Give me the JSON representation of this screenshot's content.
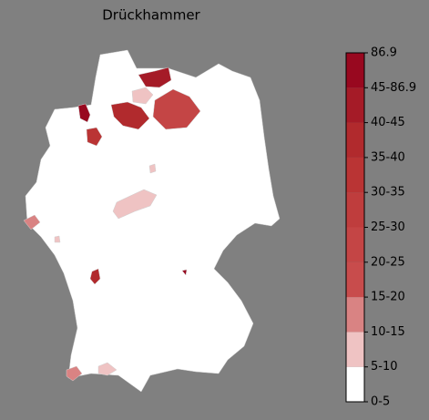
{
  "title": "Drückhammer",
  "colorbar": {
    "labels": [
      "0-5",
      "5-10",
      "10-15",
      "15-20",
      "20-25",
      "25-30",
      "30-35",
      "35-40",
      "40-45",
      "45-86.9",
      "86.9"
    ],
    "colors": [
      "#ffffff",
      "#efc3c3",
      "#d98383",
      "#c84c4c",
      "#c44545",
      "#bf3d3d",
      "#ba3434",
      "#b12a2d",
      "#a51b27",
      "#98081f"
    ]
  }
}
